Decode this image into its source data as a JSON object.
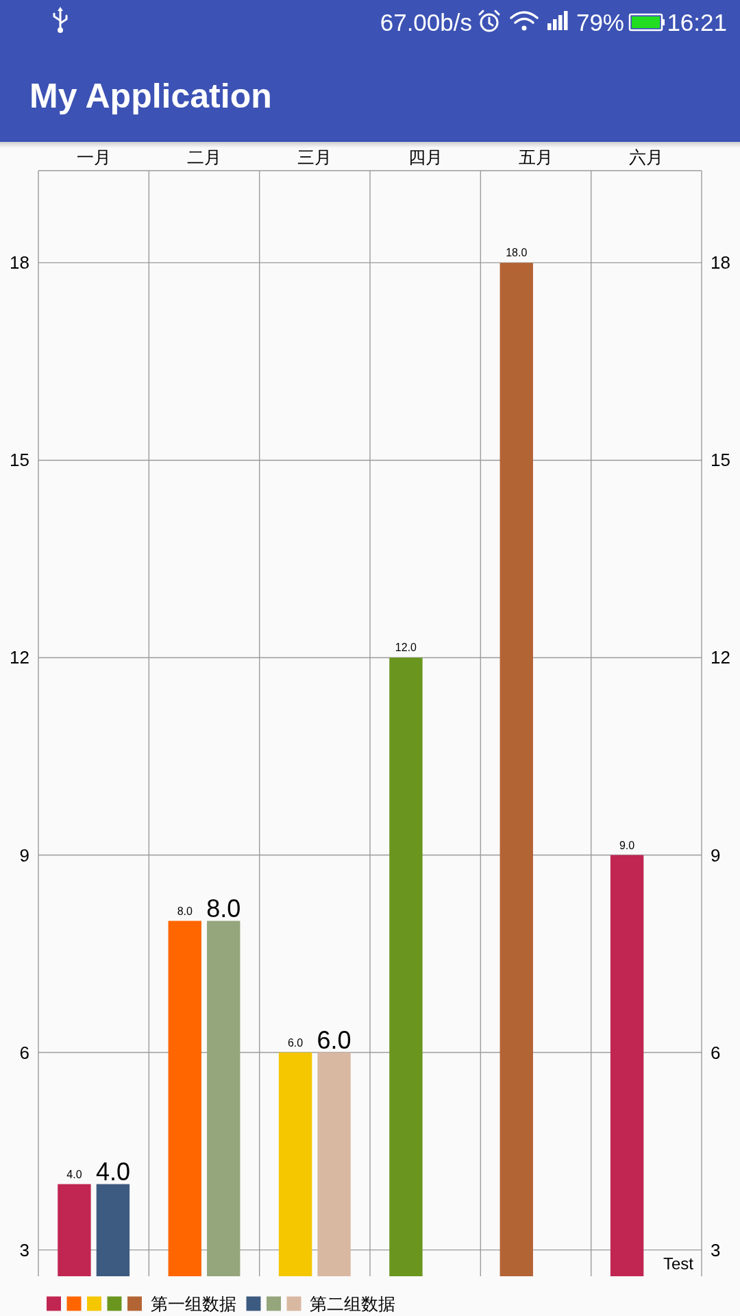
{
  "chart_data": {
    "type": "bar",
    "title": "My Application",
    "categories": [
      "一月",
      "二月",
      "三月",
      "四月",
      "五月",
      "六月"
    ],
    "series": [
      {
        "name": "第一组数据",
        "values": [
          4,
          8,
          6,
          12,
          18,
          9
        ],
        "colors": [
          "#c12552",
          "#ff6600",
          "#f5c700",
          "#6a961f",
          "#b36435",
          "#c12552"
        ],
        "value_labels": [
          "4.0",
          "8.0",
          "6.0",
          "12.0",
          "18.0",
          "9.0"
        ]
      },
      {
        "name": "第二组数据",
        "values": [
          4,
          8,
          6,
          null,
          null,
          null
        ],
        "colors": [
          "#3d5a80",
          "#95a57c",
          "#d9b8a2",
          null,
          null,
          null
        ],
        "value_labels": [
          "4.0",
          "8.0",
          "6.0",
          null,
          null,
          null
        ]
      }
    ],
    "ylim": [
      2.6,
      19.4
    ],
    "yticks": [
      3,
      6,
      9,
      12,
      15,
      18
    ],
    "y2lim": [
      2.6,
      19.4
    ],
    "y2ticks": [
      3,
      6,
      9,
      12,
      15,
      18
    ],
    "grid": true,
    "legend": "bottom left",
    "annotations": [
      "Test",
      "67.00b/s",
      "79%",
      "16:21"
    ]
  }
}
